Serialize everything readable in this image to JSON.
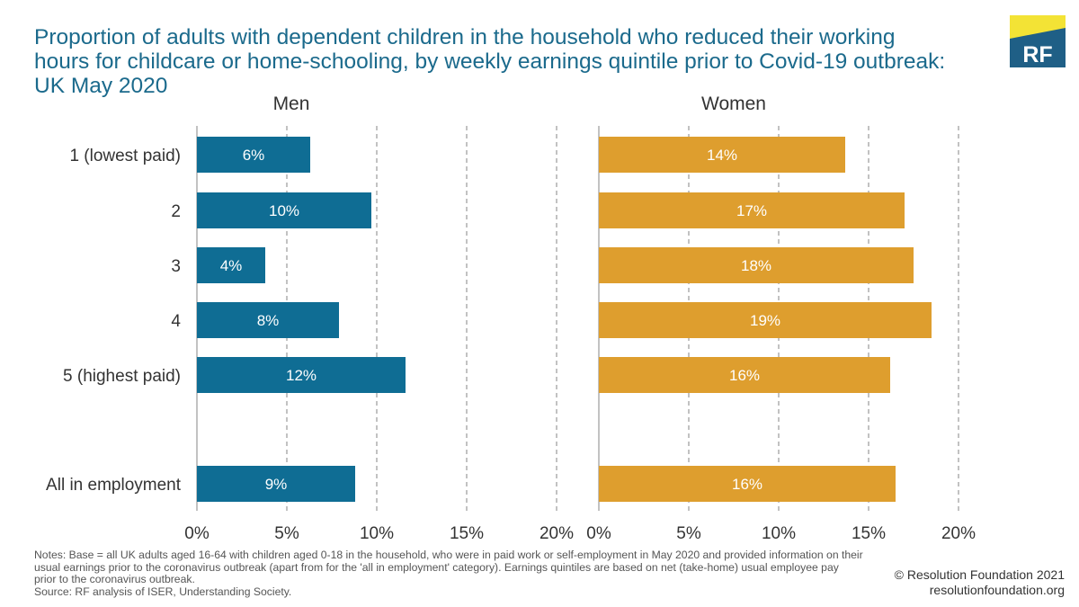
{
  "title_lines": [
    "Proportion of adults with dependent children in the household who reduced their working",
    "hours for childcare or home-schooling, by weekly earnings quintile prior to Covid-19 outbreak:",
    "UK May 2020"
  ],
  "logo": {
    "text": "RF",
    "colors": {
      "main": "#1f5f86",
      "accent": "#f3e335"
    }
  },
  "notes_lines": [
    "Notes: Base = all UK adults aged 16-64 with children aged 0-18 in the household, who were in paid work or self-employment in May 2020 and provided information on their",
    "usual earnings prior to the coronavirus outbreak (apart from for the 'all in employment' category). Earnings quintiles are based on net (take-home) usual employee pay",
    "prior to the coronavirus outbreak.",
    "Source: RF analysis of ISER, Understanding Society."
  ],
  "credit_lines": [
    "© Resolution Foundation 2021",
    "resolutionfoundation.org"
  ],
  "chart_data": {
    "type": "bar",
    "orientation": "horizontal",
    "categories": [
      "1 (lowest paid)",
      "2",
      "3",
      "4",
      "5 (highest paid)",
      "All in employment"
    ],
    "xlim": [
      0,
      20
    ],
    "ticks": [
      "0%",
      "5%",
      "10%",
      "15%",
      "20%"
    ],
    "grid": "vertical dashed",
    "panels": [
      {
        "title": "Men",
        "color": "#0f6d94",
        "values": [
          6.3,
          9.7,
          3.8,
          7.9,
          11.6,
          8.8
        ],
        "labels": [
          "6%",
          "10%",
          "4%",
          "8%",
          "12%",
          "9%"
        ]
      },
      {
        "title": "Women",
        "color": "#de9e2e",
        "values": [
          13.7,
          17.0,
          17.5,
          18.5,
          16.2,
          16.5
        ],
        "labels": [
          "14%",
          "17%",
          "18%",
          "19%",
          "16%",
          "16%"
        ]
      }
    ]
  }
}
